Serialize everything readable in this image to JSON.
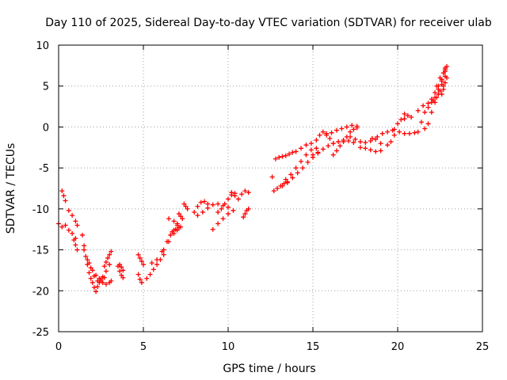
{
  "chart_data": {
    "type": "scatter",
    "title": "Day 110 of 2025, Sidereal Day-to-day VTEC variation (SDTVAR) for receiver ulab",
    "xlabel": "GPS time / hours",
    "ylabel": "SDTVAR / TECUs",
    "xlim": [
      0,
      25
    ],
    "ylim": [
      -25,
      10
    ],
    "xticks": [
      0,
      5,
      10,
      15,
      20,
      25
    ],
    "yticks": [
      -25,
      -20,
      -15,
      -10,
      -5,
      0,
      5,
      10
    ],
    "grid": true,
    "marker": "+",
    "color": "#ff0000",
    "series": [
      {
        "name": "SDTVAR",
        "segments": [
          {
            "x": [
              0.0,
              0.2,
              0.4,
              0.6,
              0.8,
              1.0
            ],
            "y": [
              -11.8,
              -12.2,
              -12.0,
              -12.6,
              -13.0,
              -13.6
            ]
          },
          {
            "x": [
              0.2,
              0.3,
              0.4
            ],
            "y": [
              -7.8,
              -8.4,
              -9.0
            ]
          },
          {
            "x": [
              0.6,
              0.8,
              1.0,
              1.1
            ],
            "y": [
              -10.2,
              -10.8,
              -11.5,
              -12.0
            ]
          },
          {
            "x": [
              0.9,
              1.0,
              1.1
            ],
            "y": [
              -13.8,
              -14.4,
              -15.0
            ]
          },
          {
            "x": [
              1.4,
              1.5,
              1.6,
              1.7,
              1.8,
              1.9,
              2.0,
              2.1,
              2.2,
              2.3,
              2.4,
              2.5
            ],
            "y": [
              -13.2,
              -14.5,
              -15.8,
              -16.8,
              -17.8,
              -18.5,
              -19.0,
              -19.6,
              -20.1,
              -19.5,
              -19.0,
              -18.6
            ]
          },
          {
            "x": [
              1.5,
              1.7,
              1.9,
              2.1,
              2.3,
              2.5,
              2.7
            ],
            "y": [
              -15.0,
              -16.2,
              -17.2,
              -18.2,
              -18.8,
              -18.8,
              -18.4
            ]
          },
          {
            "x": [
              1.8,
              2.0,
              2.2,
              2.4,
              2.6,
              2.8,
              3.0
            ],
            "y": [
              -16.6,
              -17.5,
              -18.1,
              -18.5,
              -18.3,
              -17.6,
              -16.8
            ]
          },
          {
            "x": [
              2.6,
              2.8,
              3.0,
              3.1
            ],
            "y": [
              -19.0,
              -19.2,
              -19.0,
              -18.8
            ]
          },
          {
            "x": [
              2.7,
              2.8,
              2.9,
              3.0,
              3.1
            ],
            "y": [
              -17.0,
              -16.5,
              -16.0,
              -15.6,
              -15.2
            ]
          },
          {
            "x": [
              3.5,
              3.6,
              3.7,
              3.8
            ],
            "y": [
              -17.0,
              -17.6,
              -18.1,
              -18.4
            ]
          },
          {
            "x": [
              3.6,
              3.7,
              3.8
            ],
            "y": [
              -16.8,
              -17.1,
              -17.5
            ]
          },
          {
            "x": [
              4.7,
              4.8,
              4.9,
              5.0
            ],
            "y": [
              -15.6,
              -16.0,
              -16.4,
              -16.8
            ]
          },
          {
            "x": [
              4.7,
              4.8,
              4.9
            ],
            "y": [
              -18.0,
              -18.6,
              -19.0
            ]
          },
          {
            "x": [
              5.2,
              5.4,
              5.6,
              5.8,
              6.0,
              6.2
            ],
            "y": [
              -18.5,
              -18.0,
              -17.4,
              -16.8,
              -16.2,
              -15.6
            ]
          },
          {
            "x": [
              5.5,
              5.8,
              6.1,
              6.4,
              6.6,
              6.8,
              7.0
            ],
            "y": [
              -16.6,
              -16.2,
              -15.2,
              -14.0,
              -13.2,
              -12.6,
              -12.0
            ]
          },
          {
            "x": [
              6.2,
              6.5,
              6.8,
              7.0,
              7.2
            ],
            "y": [
              -15.0,
              -14.0,
              -13.0,
              -12.6,
              -12.2
            ]
          },
          {
            "x": [
              6.7,
              6.9,
              7.1
            ],
            "y": [
              -12.8,
              -12.5,
              -12.3
            ]
          },
          {
            "x": [
              6.5,
              6.8,
              7.0
            ],
            "y": [
              -11.2,
              -11.5,
              -11.8
            ]
          },
          {
            "x": [
              7.1,
              7.2,
              7.3
            ],
            "y": [
              -10.6,
              -10.9,
              -11.2
            ]
          },
          {
            "x": [
              7.4,
              7.5,
              7.6
            ],
            "y": [
              -9.4,
              -9.7,
              -10.0
            ]
          },
          {
            "x": [
              8.0,
              8.2,
              8.4,
              8.6,
              8.8
            ],
            "y": [
              -10.4,
              -9.7,
              -9.2,
              -9.1,
              -9.4
            ]
          },
          {
            "x": [
              8.2,
              8.5,
              8.8,
              9.1,
              9.4,
              9.7,
              10.0
            ],
            "y": [
              -10.8,
              -10.4,
              -9.9,
              -9.5,
              -9.4,
              -9.6,
              -9.8
            ]
          },
          {
            "x": [
              9.1,
              9.4,
              9.7,
              10.0,
              10.3
            ],
            "y": [
              -12.5,
              -11.8,
              -11.2,
              -10.6,
              -10.2
            ]
          },
          {
            "x": [
              9.4,
              9.6,
              9.8,
              10.0,
              10.2,
              10.4
            ],
            "y": [
              -10.4,
              -10.0,
              -9.4,
              -8.8,
              -8.3,
              -8.1
            ]
          },
          {
            "x": [
              10.2,
              10.4,
              10.6,
              10.8,
              11.0,
              11.2
            ],
            "y": [
              -8.0,
              -8.4,
              -8.8,
              -8.2,
              -7.8,
              -8.0
            ]
          },
          {
            "x": [
              10.9,
              11.0,
              11.1,
              11.2
            ],
            "y": [
              -11.0,
              -10.6,
              -10.2,
              -10.0
            ]
          },
          {
            "x": [
              12.6
            ],
            "y": [
              -6.1
            ]
          },
          {
            "x": [
              12.7,
              12.9,
              13.1,
              13.3,
              13.5
            ],
            "y": [
              -7.8,
              -7.5,
              -7.2,
              -6.9,
              -6.7
            ]
          },
          {
            "x": [
              12.8,
              13.0,
              13.2,
              13.4,
              13.6,
              13.8,
              14.0
            ],
            "y": [
              -3.9,
              -3.7,
              -3.6,
              -3.5,
              -3.3,
              -3.1,
              -3.0
            ]
          },
          {
            "x": [
              13.2,
              13.5,
              13.8,
              14.1,
              14.4,
              14.7,
              15.0,
              15.3
            ],
            "y": [
              -7.2,
              -6.8,
              -6.2,
              -5.6,
              -5.0,
              -4.3,
              -3.7,
              -3.2
            ]
          },
          {
            "x": [
              13.4,
              13.7,
              14.0,
              14.3,
              14.6,
              14.9,
              15.2
            ],
            "y": [
              -6.4,
              -5.8,
              -5.0,
              -4.2,
              -3.4,
              -2.8,
              -2.6
            ]
          },
          {
            "x": [
              14.3,
              14.6,
              14.9
            ],
            "y": [
              -2.6,
              -2.2,
              -2.0
            ]
          },
          {
            "x": [
              15.0,
              15.3,
              15.6,
              15.9,
              16.2,
              16.5,
              16.8,
              17.1,
              17.4
            ],
            "y": [
              -3.4,
              -3.1,
              -2.7,
              -2.3,
              -2.0,
              -1.8,
              -1.6,
              -1.7,
              -1.9
            ]
          },
          {
            "x": [
              15.2,
              15.4,
              15.6,
              15.8,
              16.0,
              16.2
            ],
            "y": [
              -1.6,
              -1.0,
              -0.6,
              -0.8,
              -1.4,
              -2.0
            ]
          },
          {
            "x": [
              15.8,
              16.1,
              16.4,
              16.7,
              17.0,
              17.3,
              17.6
            ],
            "y": [
              -1.0,
              -0.7,
              -0.4,
              -0.2,
              0.0,
              0.2,
              0.1
            ]
          },
          {
            "x": [
              16.2,
              16.4,
              16.6,
              16.8,
              17.0,
              17.2,
              17.4,
              17.6
            ],
            "y": [
              -3.4,
              -2.9,
              -2.3,
              -1.8,
              -1.2,
              -0.6,
              -0.3,
              -0.1
            ]
          },
          {
            "x": [
              17.2,
              17.5,
              17.8,
              18.1,
              18.4,
              18.7,
              19.0
            ],
            "y": [
              -1.2,
              -1.5,
              -1.8,
              -1.9,
              -1.7,
              -1.5,
              -2.0
            ]
          },
          {
            "x": [
              17.8,
              18.1,
              18.4,
              18.7,
              19.0
            ],
            "y": [
              -2.5,
              -2.6,
              -2.8,
              -3.0,
              -2.9
            ]
          },
          {
            "x": [
              18.5,
              18.8,
              19.1,
              19.4,
              19.7
            ],
            "y": [
              -1.4,
              -1.2,
              -0.8,
              -0.6,
              -0.4
            ]
          },
          {
            "x": [
              19.4,
              19.6,
              19.8,
              20.0,
              20.2,
              20.4
            ],
            "y": [
              -2.2,
              -1.8,
              -1.0,
              0.4,
              0.9,
              1.0
            ]
          },
          {
            "x": [
              19.8,
              20.1,
              20.4,
              20.7,
              21.0
            ],
            "y": [
              -0.3,
              -0.6,
              -0.8,
              -0.8,
              -0.7
            ]
          },
          {
            "x": [
              20.4,
              20.6,
              20.8
            ],
            "y": [
              1.6,
              1.4,
              1.2
            ]
          },
          {
            "x": [
              21.2,
              21.5,
              21.8,
              22.1,
              22.3,
              22.5,
              22.7
            ],
            "y": [
              2.0,
              2.6,
              2.9,
              3.2,
              3.6,
              4.4,
              5.0
            ]
          },
          {
            "x": [
              21.2,
              21.4,
              21.6,
              21.8,
              22.0,
              22.2,
              22.4,
              22.6,
              22.8
            ],
            "y": [
              -0.6,
              0.6,
              1.8,
              2.4,
              3.0,
              3.6,
              4.6,
              5.8,
              6.8
            ]
          },
          {
            "x": [
              21.6,
              21.8,
              22.0,
              22.2,
              22.4,
              22.6,
              22.8
            ],
            "y": [
              -0.2,
              0.4,
              1.8,
              3.0,
              4.0,
              5.2,
              6.2
            ]
          },
          {
            "x": [
              22.0,
              22.2,
              22.4,
              22.6,
              22.8
            ],
            "y": [
              3.4,
              4.2,
              5.0,
              5.6,
              7.0
            ]
          },
          {
            "x": [
              22.3,
              22.5,
              22.7,
              22.8,
              22.9
            ],
            "y": [
              5.0,
              6.0,
              6.6,
              7.2,
              7.4
            ]
          },
          {
            "x": [
              22.6,
              22.7,
              22.8,
              22.9
            ],
            "y": [
              4.0,
              4.6,
              5.4,
              6.0
            ]
          }
        ]
      }
    ]
  }
}
